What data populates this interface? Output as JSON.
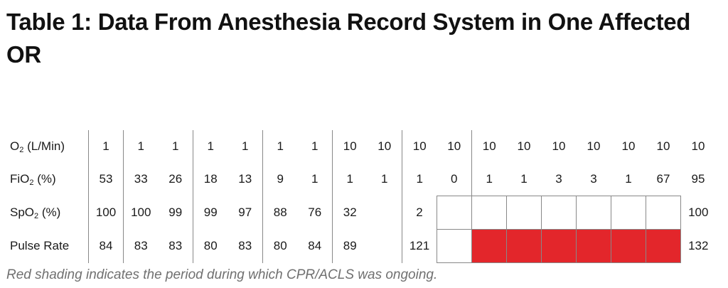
{
  "title": "Table 1: Data From Anesthesia Record System in One Affected OR",
  "rows": [
    {
      "label": {
        "pre": "O",
        "sub": "2",
        "post": " (L/Min)"
      },
      "cells": [
        "1",
        "1",
        "1",
        "1",
        "1",
        "1",
        "1",
        "10",
        "10",
        "10",
        "10",
        "10",
        "10",
        "10",
        "10",
        "10",
        "10",
        "10"
      ]
    },
    {
      "label": {
        "pre": "FiO",
        "sub": "2",
        "post": " (%)"
      },
      "cells": [
        "53",
        "33",
        "26",
        "18",
        "13",
        "9",
        "1",
        "1",
        "1",
        "1",
        "0",
        "1",
        "1",
        "3",
        "3",
        "1",
        "67",
        "95"
      ]
    },
    {
      "label": {
        "pre": "SpO",
        "sub": "2",
        "post": " (%)"
      },
      "cells": [
        "100",
        "100",
        "99",
        "99",
        "97",
        "88",
        "76",
        "32",
        "",
        "2",
        "",
        "",
        "",
        "",
        "",
        "",
        "",
        "100"
      ]
    },
    {
      "label": {
        "pre": "Pulse Rate",
        "sub": "",
        "post": ""
      },
      "cells": [
        "84",
        "83",
        "83",
        "80",
        "83",
        "80",
        "84",
        "89",
        "",
        "121",
        "",
        "",
        "",
        "",
        "",
        "",
        "",
        "132"
      ]
    }
  ],
  "cpr_shading": {
    "color": "#e3262b",
    "columns": [
      12,
      13,
      14,
      15,
      16,
      17
    ]
  },
  "caption": "Red shading indicates the period during which CPR/ACLS was ongoing."
}
